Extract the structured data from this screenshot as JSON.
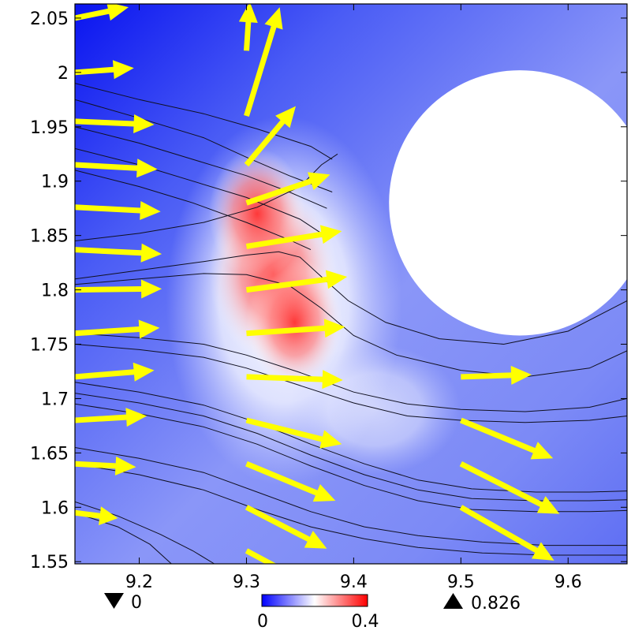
{
  "chart_data": {
    "type": "heatmap",
    "subtype": "2d-surface-with-streamlines-and-arrows",
    "title": "",
    "xlabel": "",
    "ylabel": "",
    "xlim": [
      9.14,
      9.655
    ],
    "ylim": [
      1.548,
      2.063
    ],
    "x_ticks": [
      {
        "value": 9.2,
        "label": "9.2"
      },
      {
        "value": 9.3,
        "label": "9.3"
      },
      {
        "value": 9.4,
        "label": "9.4"
      },
      {
        "value": 9.5,
        "label": "9.5"
      },
      {
        "value": 9.6,
        "label": "9.6"
      }
    ],
    "y_ticks": [
      {
        "value": 2.05,
        "label": "2.05"
      },
      {
        "value": 2.0,
        "label": "2"
      },
      {
        "value": 1.95,
        "label": "1.95"
      },
      {
        "value": 1.9,
        "label": "1.9"
      },
      {
        "value": 1.85,
        "label": "1.85"
      },
      {
        "value": 1.8,
        "label": "1.8"
      },
      {
        "value": 1.75,
        "label": "1.75"
      },
      {
        "value": 1.7,
        "label": "1.7"
      },
      {
        "value": 1.65,
        "label": "1.65"
      },
      {
        "value": 1.6,
        "label": "1.6"
      },
      {
        "value": 1.55,
        "label": "1.55"
      }
    ],
    "colorbar": {
      "min_label": "0",
      "max_label": "0.4",
      "range": [
        0,
        0.4
      ],
      "colormap": [
        "#0000ff",
        "#ffffff",
        "#ff0000"
      ],
      "placement": "bottom-center"
    },
    "data_extremes": {
      "min_label": "0",
      "max_label": "0.826",
      "min_marker": "down-triangle",
      "max_marker": "up-triangle"
    },
    "obstacle": {
      "shape": "circle",
      "center": [
        9.555,
        1.88
      ],
      "radius": 0.122
    },
    "heat_spots": [
      {
        "x": 9.325,
        "y": 1.815,
        "value": 0.4
      },
      {
        "x": 9.345,
        "y": 1.77,
        "value": 0.3
      },
      {
        "x": 9.31,
        "y": 1.87,
        "value": 0.3
      }
    ],
    "arrow_color": "#ffff00",
    "arrows": [
      {
        "x": 9.14,
        "y": 2.05,
        "u": 0.05,
        "v": 0.01
      },
      {
        "x": 9.14,
        "y": 2.0,
        "u": 0.055,
        "v": 0.004
      },
      {
        "x": 9.14,
        "y": 1.955,
        "u": 0.074,
        "v": -0.003
      },
      {
        "x": 9.14,
        "y": 1.915,
        "u": 0.077,
        "v": -0.004
      },
      {
        "x": 9.14,
        "y": 1.876,
        "u": 0.08,
        "v": -0.004
      },
      {
        "x": 9.14,
        "y": 1.837,
        "u": 0.081,
        "v": -0.004
      },
      {
        "x": 9.14,
        "y": 1.8,
        "u": 0.081,
        "v": 0.001
      },
      {
        "x": 9.14,
        "y": 1.76,
        "u": 0.079,
        "v": 0.005
      },
      {
        "x": 9.14,
        "y": 1.72,
        "u": 0.074,
        "v": 0.006
      },
      {
        "x": 9.14,
        "y": 1.68,
        "u": 0.067,
        "v": 0.004
      },
      {
        "x": 9.14,
        "y": 1.64,
        "u": 0.057,
        "v": -0.003
      },
      {
        "x": 9.14,
        "y": 1.595,
        "u": 0.04,
        "v": -0.005
      },
      {
        "x": 9.3,
        "y": 2.02,
        "u": 0.003,
        "v": 0.045
      },
      {
        "x": 9.3,
        "y": 1.96,
        "u": 0.031,
        "v": 0.1
      },
      {
        "x": 9.3,
        "y": 1.915,
        "u": 0.046,
        "v": 0.054
      },
      {
        "x": 9.3,
        "y": 1.88,
        "u": 0.078,
        "v": 0.026
      },
      {
        "x": 9.3,
        "y": 1.84,
        "u": 0.089,
        "v": 0.014
      },
      {
        "x": 9.3,
        "y": 1.8,
        "u": 0.094,
        "v": 0.012
      },
      {
        "x": 9.3,
        "y": 1.76,
        "u": 0.092,
        "v": 0.006
      },
      {
        "x": 9.3,
        "y": 1.72,
        "u": 0.09,
        "v": -0.003
      },
      {
        "x": 9.3,
        "y": 1.68,
        "u": 0.089,
        "v": -0.022
      },
      {
        "x": 9.3,
        "y": 1.64,
        "u": 0.083,
        "v": -0.034
      },
      {
        "x": 9.3,
        "y": 1.6,
        "u": 0.075,
        "v": -0.038
      },
      {
        "x": 9.3,
        "y": 1.56,
        "u": 0.07,
        "v": -0.037
      },
      {
        "x": 9.5,
        "y": 1.72,
        "u": 0.066,
        "v": 0.002
      },
      {
        "x": 9.5,
        "y": 1.68,
        "u": 0.086,
        "v": -0.035
      },
      {
        "x": 9.5,
        "y": 1.64,
        "u": 0.092,
        "v": -0.046
      },
      {
        "x": 9.5,
        "y": 1.6,
        "u": 0.087,
        "v": -0.049
      }
    ],
    "streamlines": [
      [
        [
          9.14,
          1.99
        ],
        [
          9.2,
          1.975
        ],
        [
          9.26,
          1.962
        ],
        [
          9.31,
          1.948
        ],
        [
          9.36,
          1.932
        ],
        [
          9.38,
          1.92
        ]
      ],
      [
        [
          9.14,
          1.975
        ],
        [
          9.2,
          1.958
        ],
        [
          9.26,
          1.94
        ],
        [
          9.3,
          1.922
        ],
        [
          9.34,
          1.905
        ],
        [
          9.38,
          1.89
        ]
      ],
      [
        [
          9.14,
          1.95
        ],
        [
          9.2,
          1.935
        ],
        [
          9.25,
          1.92
        ],
        [
          9.3,
          1.905
        ],
        [
          9.34,
          1.89
        ],
        [
          9.375,
          1.875
        ]
      ],
      [
        [
          9.14,
          1.93
        ],
        [
          9.2,
          1.915
        ],
        [
          9.25,
          1.9
        ],
        [
          9.3,
          1.885
        ],
        [
          9.35,
          1.865
        ],
        [
          9.37,
          1.852
        ]
      ],
      [
        [
          9.14,
          1.91
        ],
        [
          9.2,
          1.895
        ],
        [
          9.25,
          1.88
        ],
        [
          9.3,
          1.862
        ],
        [
          9.34,
          1.846
        ],
        [
          9.36,
          1.837
        ]
      ],
      [
        [
          9.14,
          1.845
        ],
        [
          9.2,
          1.852
        ],
        [
          9.26,
          1.862
        ],
        [
          9.31,
          1.876
        ],
        [
          9.35,
          1.895
        ],
        [
          9.37,
          1.915
        ],
        [
          9.385,
          1.925
        ]
      ],
      [
        [
          9.14,
          1.81
        ],
        [
          9.2,
          1.818
        ],
        [
          9.26,
          1.826
        ],
        [
          9.3,
          1.832
        ],
        [
          9.33,
          1.835
        ],
        [
          9.35,
          1.83
        ],
        [
          9.37,
          1.812
        ],
        [
          9.395,
          1.79
        ],
        [
          9.43,
          1.77
        ],
        [
          9.48,
          1.755
        ],
        [
          9.54,
          1.75
        ],
        [
          9.6,
          1.762
        ],
        [
          9.655,
          1.79
        ]
      ],
      [
        [
          9.14,
          1.805
        ],
        [
          9.2,
          1.81
        ],
        [
          9.26,
          1.815
        ],
        [
          9.3,
          1.814
        ],
        [
          9.34,
          1.804
        ],
        [
          9.37,
          1.783
        ],
        [
          9.4,
          1.758
        ],
        [
          9.44,
          1.74
        ],
        [
          9.5,
          1.726
        ],
        [
          9.56,
          1.72
        ],
        [
          9.62,
          1.728
        ],
        [
          9.655,
          1.744
        ]
      ],
      [
        [
          9.14,
          1.76
        ],
        [
          9.2,
          1.756
        ],
        [
          9.26,
          1.75
        ],
        [
          9.3,
          1.74
        ],
        [
          9.35,
          1.724
        ],
        [
          9.4,
          1.706
        ],
        [
          9.45,
          1.695
        ],
        [
          9.5,
          1.69
        ],
        [
          9.56,
          1.688
        ],
        [
          9.62,
          1.692
        ],
        [
          9.655,
          1.7
        ]
      ],
      [
        [
          9.14,
          1.75
        ],
        [
          9.2,
          1.745
        ],
        [
          9.26,
          1.738
        ],
        [
          9.3,
          1.728
        ],
        [
          9.35,
          1.712
        ],
        [
          9.4,
          1.696
        ],
        [
          9.45,
          1.684
        ],
        [
          9.5,
          1.68
        ],
        [
          9.56,
          1.678
        ],
        [
          9.62,
          1.68
        ],
        [
          9.655,
          1.684
        ]
      ],
      [
        [
          9.14,
          1.715
        ],
        [
          9.2,
          1.706
        ],
        [
          9.26,
          1.694
        ],
        [
          9.31,
          1.678
        ],
        [
          9.36,
          1.658
        ],
        [
          9.41,
          1.64
        ],
        [
          9.46,
          1.625
        ],
        [
          9.51,
          1.617
        ],
        [
          9.57,
          1.614
        ],
        [
          9.62,
          1.614
        ],
        [
          9.655,
          1.615
        ]
      ],
      [
        [
          9.14,
          1.705
        ],
        [
          9.2,
          1.696
        ],
        [
          9.26,
          1.684
        ],
        [
          9.31,
          1.668
        ],
        [
          9.36,
          1.648
        ],
        [
          9.41,
          1.63
        ],
        [
          9.46,
          1.616
        ],
        [
          9.51,
          1.608
        ],
        [
          9.57,
          1.606
        ],
        [
          9.62,
          1.606
        ],
        [
          9.655,
          1.607
        ]
      ],
      [
        [
          9.14,
          1.695
        ],
        [
          9.2,
          1.686
        ],
        [
          9.26,
          1.674
        ],
        [
          9.31,
          1.658
        ],
        [
          9.36,
          1.638
        ],
        [
          9.41,
          1.62
        ],
        [
          9.46,
          1.606
        ],
        [
          9.51,
          1.598
        ],
        [
          9.57,
          1.596
        ],
        [
          9.62,
          1.596
        ],
        [
          9.655,
          1.597
        ]
      ],
      [
        [
          9.14,
          1.655
        ],
        [
          9.2,
          1.645
        ],
        [
          9.26,
          1.632
        ],
        [
          9.31,
          1.614
        ],
        [
          9.36,
          1.596
        ],
        [
          9.41,
          1.582
        ],
        [
          9.46,
          1.574
        ],
        [
          9.52,
          1.568
        ],
        [
          9.58,
          1.565
        ],
        [
          9.62,
          1.565
        ],
        [
          9.655,
          1.565
        ]
      ],
      [
        [
          9.14,
          1.64
        ],
        [
          9.2,
          1.63
        ],
        [
          9.26,
          1.616
        ],
        [
          9.31,
          1.598
        ],
        [
          9.36,
          1.582
        ],
        [
          9.41,
          1.571
        ],
        [
          9.46,
          1.563
        ],
        [
          9.52,
          1.558
        ],
        [
          9.58,
          1.556
        ],
        [
          9.655,
          1.556
        ]
      ],
      [
        [
          9.14,
          1.605
        ],
        [
          9.18,
          1.592
        ],
        [
          9.22,
          1.575
        ],
        [
          9.25,
          1.56
        ],
        [
          9.27,
          1.548
        ]
      ],
      [
        [
          9.14,
          1.595
        ],
        [
          9.18,
          1.582
        ],
        [
          9.21,
          1.566
        ],
        [
          9.23,
          1.548
        ]
      ]
    ]
  }
}
